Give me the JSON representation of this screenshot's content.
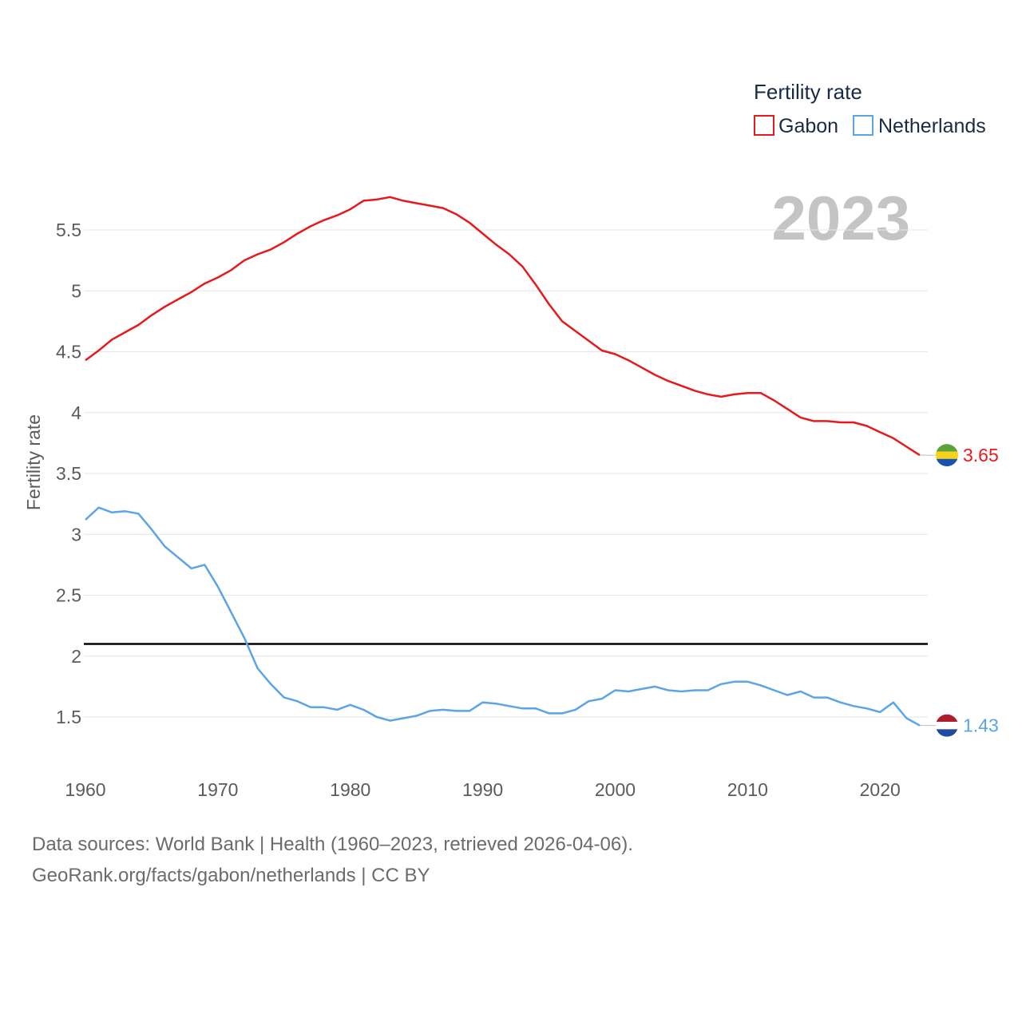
{
  "chart_data": {
    "type": "line",
    "legend_title": "Fertility rate",
    "ylabel": "Fertility rate",
    "year_badge": "2023",
    "x_ticks": [
      1960,
      1970,
      1980,
      1990,
      2000,
      2010,
      2020
    ],
    "x_range": [
      1960,
      2023
    ],
    "y_ticks": [
      1.5,
      2,
      2.5,
      3,
      3.5,
      4,
      4.5,
      5,
      5.5
    ],
    "y_tick_labels": [
      "1.5",
      "2",
      "2.5",
      "3",
      "3.5",
      "4",
      "4.5",
      "5",
      "5.5"
    ],
    "ylim": [
      1.0,
      6.0
    ],
    "reference_line": {
      "value": 2.1,
      "color": "#000000"
    },
    "series": [
      {
        "name": "Gabon",
        "color": "#e8191c",
        "flag": "gabon-flag",
        "end_label": "3.65",
        "x": [
          1960,
          1961,
          1962,
          1963,
          1964,
          1965,
          1966,
          1967,
          1968,
          1969,
          1970,
          1971,
          1972,
          1973,
          1974,
          1975,
          1976,
          1977,
          1978,
          1979,
          1980,
          1981,
          1982,
          1983,
          1984,
          1985,
          1986,
          1987,
          1988,
          1989,
          1990,
          1991,
          1992,
          1993,
          1994,
          1995,
          1996,
          1997,
          1998,
          1999,
          2000,
          2001,
          2002,
          2003,
          2004,
          2005,
          2006,
          2007,
          2008,
          2009,
          2010,
          2011,
          2012,
          2013,
          2014,
          2015,
          2016,
          2017,
          2018,
          2019,
          2020,
          2021,
          2022,
          2023
        ],
        "values": [
          4.43,
          4.51,
          4.6,
          4.66,
          4.72,
          4.8,
          4.87,
          4.93,
          4.99,
          5.06,
          5.11,
          5.17,
          5.25,
          5.3,
          5.34,
          5.4,
          5.47,
          5.53,
          5.58,
          5.62,
          5.67,
          5.74,
          5.75,
          5.77,
          5.74,
          5.72,
          5.7,
          5.68,
          5.63,
          5.56,
          5.47,
          5.38,
          5.3,
          5.2,
          5.05,
          4.89,
          4.75,
          4.67,
          4.59,
          4.51,
          4.48,
          4.43,
          4.37,
          4.31,
          4.26,
          4.22,
          4.18,
          4.15,
          4.13,
          4.15,
          4.16,
          4.16,
          4.1,
          4.03,
          3.96,
          3.93,
          3.93,
          3.92,
          3.92,
          3.89,
          3.84,
          3.79,
          3.72,
          3.65
        ]
      },
      {
        "name": "Netherlands",
        "color": "#5ba4e6",
        "flag": "netherlands-flag",
        "end_label": "1.43",
        "x": [
          1960,
          1961,
          1962,
          1963,
          1964,
          1965,
          1966,
          1967,
          1968,
          1969,
          1970,
          1971,
          1972,
          1973,
          1974,
          1975,
          1976,
          1977,
          1978,
          1979,
          1980,
          1981,
          1982,
          1983,
          1984,
          1985,
          1986,
          1987,
          1988,
          1989,
          1990,
          1991,
          1992,
          1993,
          1994,
          1995,
          1996,
          1997,
          1998,
          1999,
          2000,
          2001,
          2002,
          2003,
          2004,
          2005,
          2006,
          2007,
          2008,
          2009,
          2010,
          2011,
          2012,
          2013,
          2014,
          2015,
          2016,
          2017,
          2018,
          2019,
          2020,
          2021,
          2022,
          2023
        ],
        "values": [
          3.12,
          3.22,
          3.18,
          3.19,
          3.17,
          3.04,
          2.9,
          2.81,
          2.72,
          2.75,
          2.57,
          2.36,
          2.15,
          1.9,
          1.77,
          1.66,
          1.63,
          1.58,
          1.58,
          1.56,
          1.6,
          1.56,
          1.5,
          1.47,
          1.49,
          1.51,
          1.55,
          1.56,
          1.55,
          1.55,
          1.62,
          1.61,
          1.59,
          1.57,
          1.57,
          1.53,
          1.53,
          1.56,
          1.63,
          1.65,
          1.72,
          1.71,
          1.73,
          1.75,
          1.72,
          1.71,
          1.72,
          1.72,
          1.77,
          1.79,
          1.79,
          1.76,
          1.72,
          1.68,
          1.71,
          1.66,
          1.66,
          1.62,
          1.59,
          1.57,
          1.54,
          1.62,
          1.49,
          1.43
        ]
      }
    ]
  },
  "footer": {
    "line1": "Data sources: World Bank | Health (1960–2023, retrieved 2026-04-06).",
    "line2": "GeoRank.org/facts/gabon/netherlands | CC BY"
  }
}
